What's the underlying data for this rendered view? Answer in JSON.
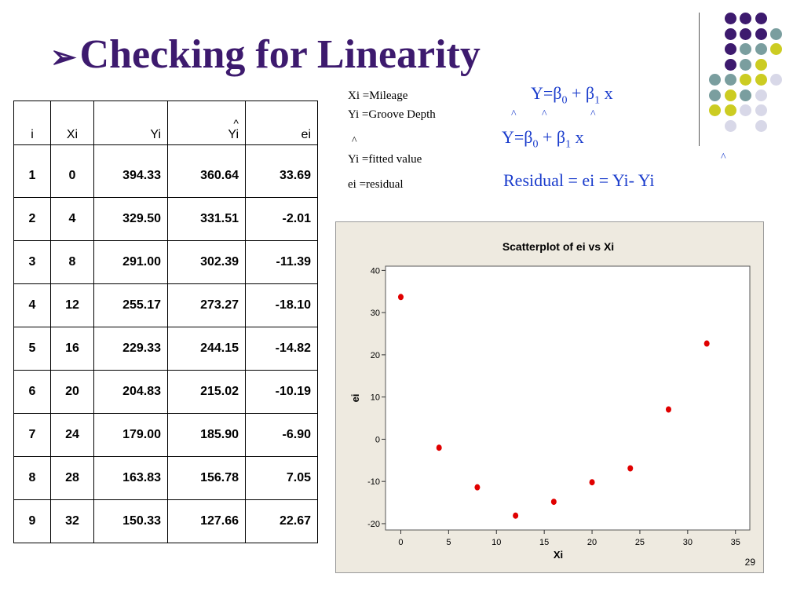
{
  "slide": {
    "title": "Checking for Linearity",
    "title_bullet": "➢",
    "page_number": "29"
  },
  "definitions": {
    "xi": "Xi =Mileage",
    "yi": "Yi =Groove Depth",
    "yhat": "Yi =fitted value",
    "ei": "ei =residual",
    "hat": "^"
  },
  "equations": {
    "pop_prefix": "Y=β",
    "pop_sub0": "0",
    "pop_mid": " + β",
    "pop_sub1": "1",
    "pop_suffix": " x",
    "est_prefix": "Y=β",
    "est_sub0": "0",
    "est_mid": " + β",
    "est_sub1": "1",
    "est_suffix": " x",
    "residual": "Residual = ei = Yi- Yi",
    "hat": "^"
  },
  "table": {
    "headers": [
      "i",
      "Xi",
      "Yi",
      "Yi",
      "ei"
    ],
    "header_hat": "^",
    "rows": [
      [
        "1",
        "0",
        "394.33",
        "360.64",
        "33.69"
      ],
      [
        "2",
        "4",
        "329.50",
        "331.51",
        "-2.01"
      ],
      [
        "3",
        "8",
        "291.00",
        "302.39",
        "-11.39"
      ],
      [
        "4",
        "12",
        "255.17",
        "273.27",
        "-18.10"
      ],
      [
        "5",
        "16",
        "229.33",
        "244.15",
        "-14.82"
      ],
      [
        "6",
        "20",
        "204.83",
        "215.02",
        "-10.19"
      ],
      [
        "7",
        "24",
        "179.00",
        "185.90",
        "-6.90"
      ],
      [
        "8",
        "28",
        "163.83",
        "156.78",
        "7.05"
      ],
      [
        "9",
        "32",
        "150.33",
        "127.66",
        "22.67"
      ]
    ]
  },
  "colors": {
    "title": "#3d1a6e",
    "equation": "#1a3ccc",
    "point": "#e00000",
    "panel_bg": "#eeeae0",
    "dot_purple": "#3d1a6e",
    "dot_teal": "#7a9e9f",
    "dot_yellow": "#cccc22",
    "dot_lavender": "#d8d8e8"
  },
  "dots_pattern": [
    [
      "",
      "purple",
      "purple",
      "purple",
      ""
    ],
    [
      "",
      "purple",
      "purple",
      "purple",
      "teal"
    ],
    [
      "",
      "purple",
      "teal",
      "teal",
      "yellow"
    ],
    [
      "",
      "purple",
      "teal",
      "yellow",
      ""
    ],
    [
      "teal",
      "teal",
      "yellow",
      "yellow",
      "lavender"
    ],
    [
      "teal",
      "yellow",
      "teal",
      "lavender",
      ""
    ],
    [
      "yellow",
      "yellow",
      "lavender",
      "lavender",
      ""
    ],
    [
      "",
      "lavender",
      "",
      "lavender",
      ""
    ]
  ],
  "chart_data": {
    "type": "scatter",
    "title": "Scatterplot of ei vs Xi",
    "xlabel": "Xi",
    "ylabel": "ei",
    "x": [
      0,
      4,
      8,
      12,
      16,
      20,
      24,
      28,
      32
    ],
    "y": [
      33.69,
      -2.01,
      -11.39,
      -18.1,
      -14.82,
      -10.19,
      -6.9,
      7.05,
      22.67
    ],
    "xlim": [
      -1.6,
      36.5
    ],
    "ylim": [
      -21.5,
      41
    ],
    "xticks": [
      0,
      5,
      10,
      15,
      20,
      25,
      30,
      35
    ],
    "yticks": [
      -20,
      -10,
      0,
      10,
      20,
      30,
      40
    ],
    "grid": false,
    "marker_color": "#e00000"
  }
}
